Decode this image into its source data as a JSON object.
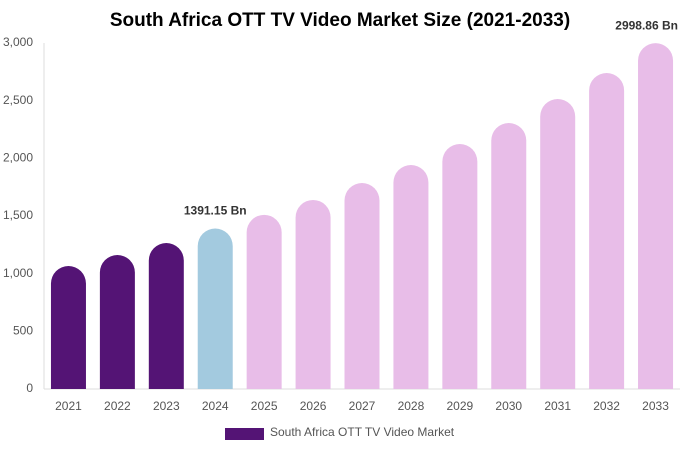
{
  "chart_data": {
    "type": "bar",
    "title": "South Africa OTT TV Video Market Size (2021-2033)",
    "categories": [
      "2021",
      "2022",
      "2023",
      "2024",
      "2025",
      "2026",
      "2027",
      "2028",
      "2029",
      "2030",
      "2031",
      "2032",
      "2033"
    ],
    "series": [
      {
        "name": "South Africa OTT TV Video Market",
        "color": "#541475",
        "values": [
          1066,
          1162,
          1266,
          1391.15,
          1510,
          1639,
          1786,
          1942,
          2124,
          2306,
          2514,
          2740,
          2998.86
        ],
        "value_labels": [
          null,
          null,
          null,
          "1391.15 Bn",
          null,
          null,
          null,
          null,
          null,
          null,
          null,
          null,
          "2998.86 Bn"
        ],
        "bar_colors": [
          "#541475",
          "#541475",
          "#541475",
          "#a3cadf",
          "#e8bde8",
          "#e8bde8",
          "#e8bde8",
          "#e8bde8",
          "#e8bde8",
          "#e8bde8",
          "#e8bde8",
          "#e8bde8",
          "#e8bde8"
        ]
      }
    ],
    "ylim": [
      0,
      3000
    ],
    "yticks": [
      0,
      500,
      {
        "value": 1000,
        "label": "1,000"
      },
      {
        "value": 1500,
        "label": "1,500"
      },
      {
        "value": 2000,
        "label": "2,000"
      },
      {
        "value": 2500,
        "label": "2,500"
      },
      {
        "value": 3000,
        "label": "3,000"
      }
    ],
    "grid": false
  }
}
